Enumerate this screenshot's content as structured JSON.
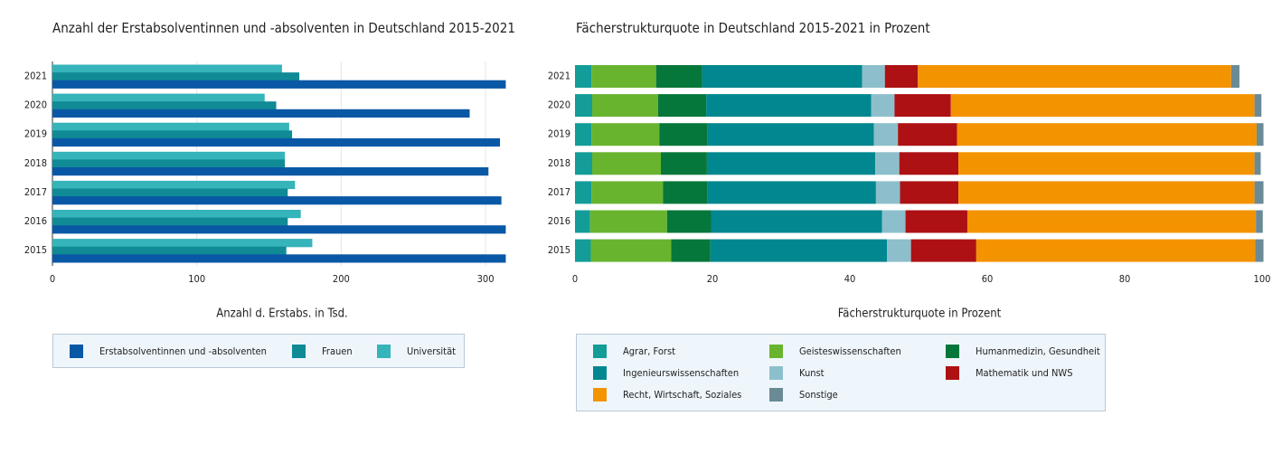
{
  "chart_data": [
    {
      "type": "bar",
      "orientation": "horizontal",
      "title": "Anzahl der Erstabsolventinnen und -absolventen in Deutschland 2015-2021",
      "xlabel": "Anzahl d. Erstabs. in Tsd.",
      "categories": [
        "2021",
        "2020",
        "2019",
        "2018",
        "2017",
        "2016",
        "2015"
      ],
      "xlim": [
        0,
        320
      ],
      "xticks": [
        "0",
        "100",
        "200",
        "300"
      ],
      "grid": true,
      "legend_position": "bottom",
      "series": [
        {
          "name": "Universität",
          "color": "#35b4ba",
          "values": [
            159,
            147,
            164,
            161,
            168,
            172,
            180
          ]
        },
        {
          "name": "Frauen",
          "color": "#108b96",
          "values": [
            171,
            155,
            166,
            161,
            163,
            163,
            162
          ]
        },
        {
          "name": "Erstabsolventinnen und -absolventen",
          "color": "#0958a6",
          "values": [
            314,
            289,
            310,
            302,
            311,
            314,
            314
          ]
        }
      ],
      "legend": [
        {
          "name": "Erstabsolventinnen und -absolventen",
          "color": "#0958a6"
        },
        {
          "name": "Frauen",
          "color": "#108b96"
        },
        {
          "name": "Universität",
          "color": "#35b4ba"
        }
      ]
    },
    {
      "type": "bar",
      "orientation": "horizontal",
      "stacked": true,
      "title": "Fächerstrukturquote in Deutschland 2015-2021 in Prozent",
      "xlabel": "Fächerstrukturquote in Prozent",
      "categories": [
        "2021",
        "2020",
        "2019",
        "2018",
        "2017",
        "2016",
        "2015"
      ],
      "xlim": [
        0,
        100
      ],
      "xticks": [
        "0",
        "20",
        "40",
        "60",
        "80",
        "100"
      ],
      "legend_position": "bottom",
      "series": [
        {
          "name": "Agrar, Forst",
          "color": "#139c98",
          "values": [
            2.4,
            2.5,
            2.4,
            2.5,
            2.4,
            2.2,
            2.3
          ]
        },
        {
          "name": "Geisteswissenschaften",
          "color": "#69b42f",
          "values": [
            9.4,
            9.6,
            9.9,
            10.0,
            10.4,
            11.2,
            11.7
          ]
        },
        {
          "name": "Humanmedizin, Gesundheit",
          "color": "#06773a",
          "values": [
            6.7,
            7.0,
            7.0,
            6.7,
            6.5,
            6.4,
            5.7
          ]
        },
        {
          "name": "Ingenieurswissenschaften",
          "color": "#00878f",
          "values": [
            23.3,
            24.0,
            24.2,
            24.5,
            24.5,
            24.9,
            25.7
          ]
        },
        {
          "name": "Kunst",
          "color": "#8cbfcb",
          "values": [
            3.3,
            3.4,
            3.5,
            3.5,
            3.5,
            3.4,
            3.5
          ]
        },
        {
          "name": "Mathematik und NWS",
          "color": "#ad1114",
          "values": [
            4.8,
            8.2,
            8.6,
            8.6,
            8.5,
            9.0,
            9.5
          ]
        },
        {
          "name": "Recht, Wirtschaft, Soziales",
          "color": "#f49300",
          "values": [
            45.6,
            44.2,
            43.6,
            43.1,
            43.1,
            42.0,
            40.6
          ]
        },
        {
          "name": "Sonstige",
          "color": "#6a8a96",
          "values": [
            1.2,
            1.0,
            1.0,
            0.9,
            1.3,
            1.0,
            1.2
          ]
        }
      ],
      "legend": [
        {
          "name": "Agrar, Forst",
          "color": "#139c98"
        },
        {
          "name": "Geisteswissenschaften",
          "color": "#69b42f"
        },
        {
          "name": "Humanmedizin, Gesundheit",
          "color": "#06773a"
        },
        {
          "name": "Ingenieurswissenschaften",
          "color": "#00878f"
        },
        {
          "name": "Kunst",
          "color": "#8cbfcb"
        },
        {
          "name": "Mathematik und NWS",
          "color": "#ad1114"
        },
        {
          "name": "Recht, Wirtschaft, Soziales",
          "color": "#f49300"
        },
        {
          "name": "Sonstige",
          "color": "#6a8a96"
        }
      ]
    }
  ]
}
